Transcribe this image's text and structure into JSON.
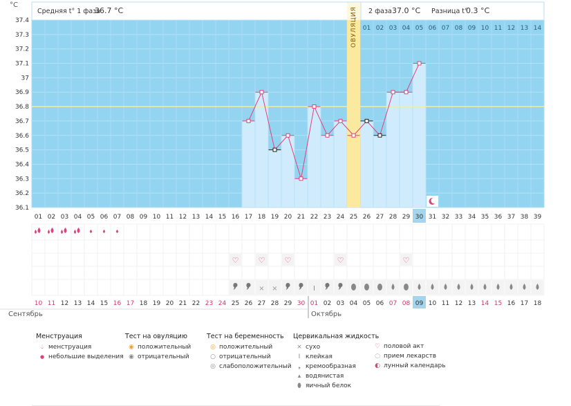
{
  "header": {
    "unit": "°C",
    "phase1_label": "Средняя t° 1 фаза",
    "phase1_value": "36.7 °C",
    "phase2_label": "2 фаза",
    "phase2_value": "37.0 °C",
    "diff_label": "Разница t°",
    "diff_value": "0.3 °C",
    "ovulation_label": "ОВУЛЯЦИЯ"
  },
  "colors": {
    "plot_bg": "#93d5f1",
    "bar_fill": "#d0ecfc",
    "ovulation_band": "#fbe9a0",
    "line": "#e0407b",
    "coverline": "#f4eca0",
    "highlight": "#a5d5ec"
  },
  "chart_data": {
    "type": "line",
    "ylim": [
      36.1,
      37.4
    ],
    "y_ticks": [
      "36.1",
      "36.2",
      "36.3",
      "36.4",
      "36.5",
      "36.6",
      "36.7",
      "36.8",
      "36.9",
      "37",
      "37.1",
      "37.2",
      "37.3",
      "37.4"
    ],
    "cycle_days": [
      "01",
      "02",
      "03",
      "04",
      "05",
      "06",
      "07",
      "08",
      "09",
      "10",
      "11",
      "12",
      "13",
      "14",
      "15",
      "16",
      "17",
      "18",
      "19",
      "20",
      "21",
      "22",
      "23",
      "24",
      "25",
      "26",
      "27",
      "28",
      "29",
      "30",
      "31",
      "32",
      "33",
      "34",
      "35",
      "36",
      "37",
      "38",
      "39"
    ],
    "post_ovulation_days": [
      "01",
      "02",
      "03",
      "04",
      "05",
      "06",
      "07",
      "08",
      "09",
      "10",
      "11",
      "12",
      "13",
      "14"
    ],
    "dates": [
      "10",
      "11",
      "12",
      "13",
      "14",
      "15",
      "16",
      "17",
      "18",
      "19",
      "20",
      "21",
      "22",
      "23",
      "24",
      "25",
      "26",
      "27",
      "28",
      "29",
      "30",
      "01",
      "02",
      "03",
      "04",
      "05",
      "06",
      "07",
      "08",
      "09",
      "10",
      "11",
      "12",
      "13",
      "14",
      "15",
      "16",
      "17",
      "18"
    ],
    "weekend_date_indices": [
      0,
      1,
      6,
      7,
      13,
      14,
      20,
      21,
      27,
      28,
      34,
      35
    ],
    "temperatures": [
      null,
      null,
      null,
      null,
      null,
      null,
      null,
      null,
      null,
      null,
      null,
      null,
      null,
      null,
      null,
      null,
      36.7,
      36.9,
      36.5,
      36.6,
      36.3,
      36.8,
      36.6,
      36.7,
      36.6,
      36.7,
      36.6,
      36.9,
      36.9,
      37.1,
      null,
      null,
      null,
      null,
      null,
      null,
      null,
      null,
      null
    ],
    "excluded_day_indices": [
      18,
      25,
      26
    ],
    "ovulation_day_index": 24,
    "current_day_index": 29,
    "coverline": 36.8,
    "months": [
      "Сентябрь",
      "Октябрь"
    ],
    "menstruation": [
      "heavy",
      "heavy",
      "heavy",
      "heavy",
      "light",
      "light",
      "light"
    ],
    "intercourse_day_indices": [
      15,
      17,
      19,
      23,
      28
    ],
    "mucus": {
      "16": "creamy",
      "17": "creamy",
      "18": "dry",
      "19": "dry",
      "20": "creamy",
      "21": "creamy",
      "22": "sticky",
      "23": "creamy",
      "24": "creamy",
      "25": "eggwhite",
      "26": "eggwhite",
      "27": "eggwhite",
      "28": "watery",
      "29": "eggwhite",
      "30": "watery",
      "31": "watery",
      "32": "watery",
      "33": "watery",
      "34": "watery",
      "35": "watery",
      "36": "watery",
      "37": "watery",
      "38": "watery",
      "39": "watery"
    },
    "moon_day_index": 30
  },
  "legend": {
    "menstruation": {
      "title": "Менструация",
      "items": [
        "менструация",
        "небольшие выделения"
      ]
    },
    "ovulation_test": {
      "title": "Тест на овуляцию",
      "items": [
        "положительный",
        "отрицательный"
      ]
    },
    "pregnancy_test": {
      "title": "Тест на беременность",
      "items": [
        "положительный",
        "отрицательный",
        "слабоположительный"
      ]
    },
    "mucus": {
      "title": "Цервикальная жидкость",
      "items": [
        "сухо",
        "клейкая",
        "кремообразная",
        "водянистая",
        "яичный белок"
      ]
    },
    "other": {
      "items": [
        "половой акт",
        "прием лекарств",
        "лунный календарь"
      ]
    }
  }
}
